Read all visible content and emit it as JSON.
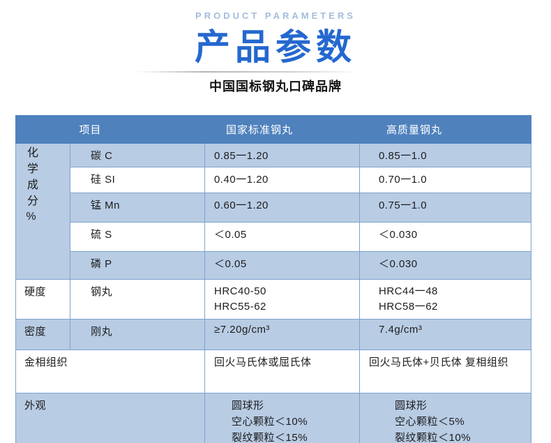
{
  "header": {
    "eyebrow": "PRODUCT PARAMETERS",
    "title": "产品参数",
    "subtitle": "中国国标钢丸口碑品牌"
  },
  "colors": {
    "title_blue": "#2468cf",
    "eyebrow_blue": "#a2bddd",
    "table_header_bg": "#4f81bd",
    "row_highlight_bg": "#b8cce4",
    "border_blue": "#7da2cd"
  },
  "table": {
    "columns": [
      "项目",
      "国家标准钢丸",
      "高质量钢丸"
    ],
    "chem_group_label": "化学成分%",
    "chem_rows": [
      {
        "item": "碳 C",
        "std": "0.85一1.20",
        "hq": "0.85一1.0"
      },
      {
        "item": "硅 SI",
        "std": "0.40一1.20",
        "hq": "0.70一1.0"
      },
      {
        "item": "锰 Mn",
        "std": "0.60一1.20",
        "hq": "0.75一1.0"
      },
      {
        "item": "硫 S",
        "std": "＜0.05",
        "hq": "＜0.030"
      },
      {
        "item": "磷 P",
        "std": "＜0.05",
        "hq": "＜0.030"
      }
    ],
    "hardness": {
      "label": "硬度",
      "item": "钢丸",
      "std": [
        "HRC40-50",
        "HRC55-62"
      ],
      "hq": [
        "HRC44一48",
        "HRC58一62"
      ]
    },
    "density": {
      "label": "密度",
      "item": "刚丸",
      "std": "≥7.20g/cm³",
      "hq": "7.4g/cm³"
    },
    "structure": {
      "label": "金相组织",
      "std": "回火马氏体或屈氏体",
      "hq": "回火马氏体+贝氏体 复相组织"
    },
    "appearance": {
      "label": "外观",
      "std": [
        "圆球形",
        "空心颗粒＜10%",
        "裂纹颗粒＜15%"
      ],
      "hq": [
        "圆球形",
        "空心颗粒＜5%",
        "裂纹颗粒＜10%"
      ]
    }
  }
}
